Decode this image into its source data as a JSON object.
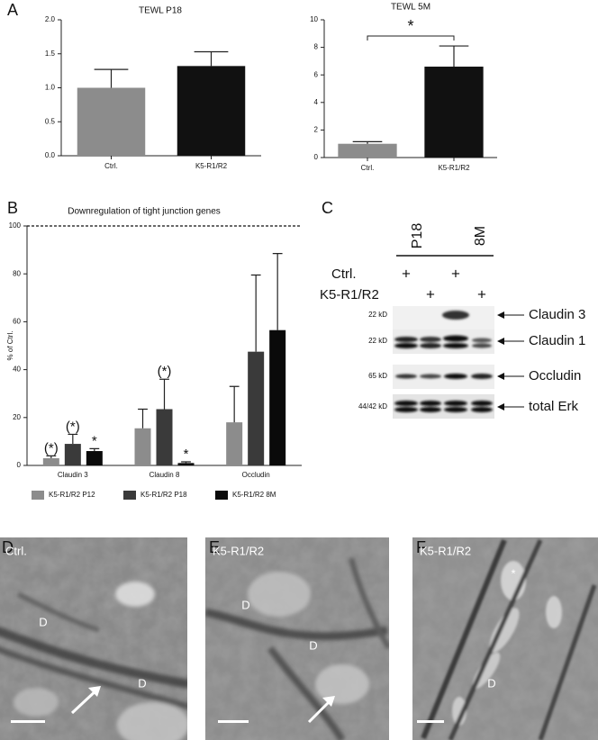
{
  "chart_data": [
    {
      "type": "bar",
      "title": "TEWL P18",
      "categories": [
        "Ctrl.",
        "K5-R1/R2"
      ],
      "values": [
        1.0,
        1.32
      ],
      "errors": [
        0.27,
        0.21
      ],
      "colors": [
        "#8c8c8c",
        "#111111"
      ],
      "ylim": [
        0,
        2
      ],
      "yticks": [
        {
          "value": 0,
          "label": "0.0"
        },
        {
          "value": 0.5,
          "label": "0.5"
        },
        {
          "value": 1,
          "label": "1.0"
        },
        {
          "value": 1.5,
          "label": "1.5"
        },
        {
          "value": 2,
          "label": "2.0"
        }
      ]
    },
    {
      "type": "bar",
      "title": "TEWL 5M",
      "categories": [
        "Ctrl.",
        "K5-R1/R2"
      ],
      "values": [
        1.0,
        6.6
      ],
      "errors": [
        0.15,
        1.5
      ],
      "colors": [
        "#8c8c8c",
        "#111111"
      ],
      "ylim": [
        0,
        10
      ],
      "yticks": [
        0,
        2,
        4,
        6,
        8,
        10
      ],
      "annotations": [
        {
          "text": "*"
        }
      ]
    },
    {
      "type": "grouped_bar",
      "title": "Downregulation of tight junction genes",
      "ylabel": "% of Ctrl.",
      "categories": [
        "Claudin 3",
        "Claudin 8",
        "Occludin"
      ],
      "series": [
        {
          "name": "K5-R1/R2 P12",
          "color": "#8c8c8c",
          "values": [
            3,
            15.5,
            18
          ],
          "errors": [
            1,
            8,
            15
          ]
        },
        {
          "name": "K5-R1/R2 P18",
          "color": "#3a3a3a",
          "values": [
            9,
            23.5,
            47.5
          ],
          "errors": [
            4,
            12.5,
            32
          ]
        },
        {
          "name": "K5-R1/R2 8M",
          "color": "#0a0a0a",
          "values": [
            6,
            1,
            56.5
          ],
          "errors": [
            1,
            0.5,
            32
          ]
        }
      ],
      "ylim": [
        0,
        100
      ],
      "yticks": [
        0,
        20,
        40,
        60,
        80,
        100
      ],
      "reference_line": 100,
      "annotations": [
        {
          "text": "(*)",
          "series": 0,
          "index": 0
        },
        {
          "text": "(*)",
          "series": 1,
          "index": 0
        },
        {
          "text": "*",
          "series": 2,
          "index": 0
        },
        {
          "text": "(*)",
          "series": 1,
          "index": 1
        },
        {
          "text": "*",
          "series": 2,
          "index": 1
        }
      ]
    }
  ],
  "panel_labels": [
    "A",
    "B",
    "C",
    "D",
    "E",
    "F"
  ],
  "blot": {
    "groups": [
      "P18",
      "8M"
    ],
    "rows": [
      {
        "label": "Ctrl.",
        "signs": [
          "+",
          "+"
        ]
      },
      {
        "label": "K5-R1/R2",
        "signs": [
          "+",
          "+"
        ]
      }
    ],
    "bands": [
      {
        "size": "22 kD",
        "name": "Claudin 3"
      },
      {
        "size": "22 kD",
        "name": "Claudin 1"
      },
      {
        "size": "65 kD",
        "name": "Occludin"
      },
      {
        "size": "44/42 kD",
        "name": "total Erk"
      }
    ]
  },
  "micrographs": [
    {
      "label": "Ctrl.",
      "features": [
        "D",
        "D"
      ]
    },
    {
      "label": "K5-R1/R2",
      "features": [
        "D",
        "D"
      ]
    },
    {
      "label": "K5-R1/R2",
      "features": [
        "*",
        "D"
      ]
    }
  ]
}
